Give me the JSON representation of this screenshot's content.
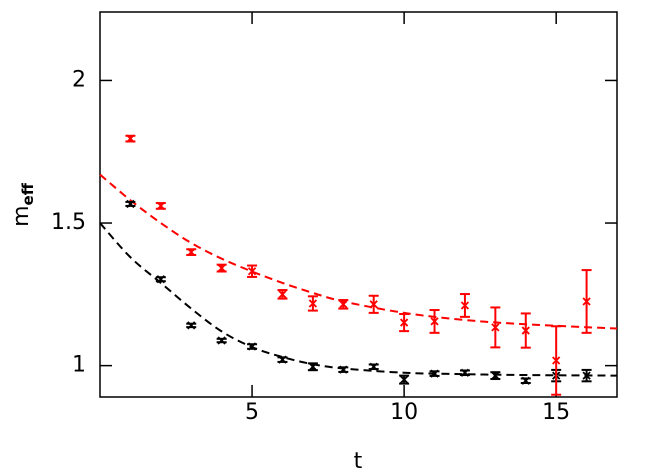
{
  "chart_data": {
    "type": "scatter",
    "xlabel": "t",
    "ylabel": "m",
    "ylabel_subscript": "eff",
    "xlim": [
      0,
      17
    ],
    "ylim": [
      0.89,
      2.24
    ],
    "xticks": [
      5,
      10,
      15
    ],
    "yticks": [
      1,
      1.5,
      2
    ],
    "series": [
      {
        "color": "#000000",
        "x": [
          1,
          2,
          3,
          4,
          5,
          6,
          7,
          8,
          9,
          10,
          11,
          12,
          13,
          14,
          15,
          16
        ],
        "values": [
          1.567,
          1.303,
          1.141,
          1.088,
          1.067,
          1.021,
          0.996,
          0.986,
          0.996,
          0.951,
          0.972,
          0.975,
          0.965,
          0.947,
          0.965,
          0.965
        ],
        "errors": [
          0.007,
          0.007,
          0.006,
          0.006,
          0.008,
          0.008,
          0.012,
          0.008,
          0.008,
          0.014,
          0.008,
          0.008,
          0.012,
          0.008,
          0.02,
          0.02
        ]
      },
      {
        "color": "#ff0000",
        "x": [
          1,
          2,
          3,
          4,
          5,
          6,
          7,
          8,
          9,
          10,
          11,
          12,
          13,
          14,
          15,
          16
        ],
        "values": [
          1.796,
          1.56,
          1.398,
          1.342,
          1.331,
          1.25,
          1.218,
          1.215,
          1.215,
          1.151,
          1.155,
          1.211,
          1.134,
          1.123,
          1.018,
          1.225
        ],
        "errors": [
          0.01,
          0.01,
          0.01,
          0.012,
          0.02,
          0.015,
          0.025,
          0.015,
          0.03,
          0.03,
          0.04,
          0.04,
          0.07,
          0.06,
          0.12,
          0.11
        ]
      }
    ],
    "fits": [
      {
        "color": "#000000",
        "x": [
          0,
          1,
          2,
          3,
          4,
          5,
          6,
          7,
          8,
          10,
          12,
          14,
          17
        ],
        "values": [
          1.5,
          1.38,
          1.29,
          1.2,
          1.12,
          1.065,
          1.03,
          1.005,
          0.99,
          0.975,
          0.97,
          0.967,
          0.965
        ]
      },
      {
        "color": "#ff0000",
        "x": [
          0,
          1,
          2,
          3,
          4,
          5,
          6,
          7,
          8,
          10,
          12,
          14,
          17
        ],
        "values": [
          1.67,
          1.58,
          1.5,
          1.43,
          1.375,
          1.33,
          1.29,
          1.255,
          1.225,
          1.185,
          1.16,
          1.145,
          1.13
        ]
      }
    ]
  }
}
